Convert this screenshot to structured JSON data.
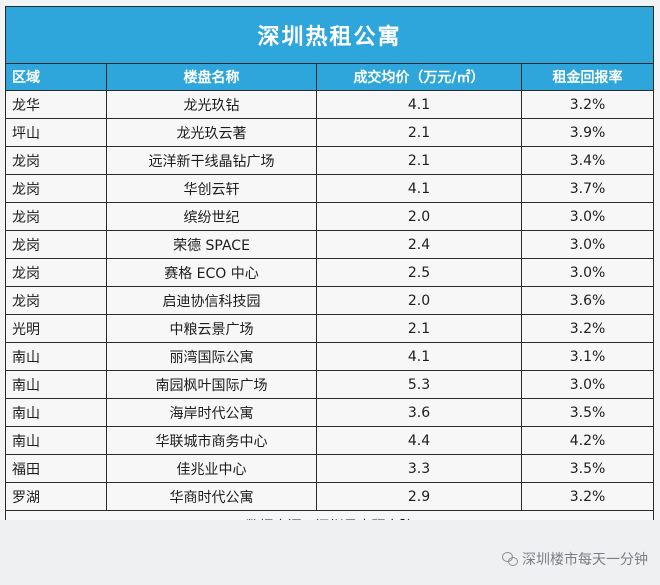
{
  "table": {
    "title": "深圳热租公寓",
    "headers": [
      "区域",
      "楼盘名称",
      "成交均价（万元/㎡）",
      "租金回报率"
    ],
    "rows": [
      [
        "龙华",
        "龙光玖钻",
        "4.1",
        "3.2%"
      ],
      [
        "坪山",
        "龙光玖云著",
        "2.1",
        "3.9%"
      ],
      [
        "龙岗",
        "远洋新干线晶钻广场",
        "2.1",
        "3.4%"
      ],
      [
        "龙岗",
        "华创云轩",
        "4.1",
        "3.7%"
      ],
      [
        "龙岗",
        "缤纷世纪",
        "2.0",
        "3.0%"
      ],
      [
        "龙岗",
        "荣德 SPACE",
        "2.4",
        "3.0%"
      ],
      [
        "龙岗",
        "赛格 ECO 中心",
        "2.5",
        "3.0%"
      ],
      [
        "龙岗",
        "启迪协信科技园",
        "2.0",
        "3.6%"
      ],
      [
        "光明",
        "中粮云景广场",
        "2.1",
        "3.2%"
      ],
      [
        "南山",
        "丽湾国际公寓",
        "4.1",
        "3.1%"
      ],
      [
        "南山",
        "南园枫叶国际广场",
        "5.3",
        "3.0%"
      ],
      [
        "南山",
        "海岸时代公寓",
        "3.6",
        "3.5%"
      ],
      [
        "南山",
        "华联城市商务中心",
        "4.4",
        "4.2%"
      ],
      [
        "福田",
        "佳兆业中心",
        "3.3",
        "3.5%"
      ],
      [
        "罗湖",
        "华商时代公寓",
        "2.9",
        "3.2%"
      ]
    ],
    "source": "数据来源：深圳贝壳研究院"
  },
  "watermark": {
    "text": "深圳楼市每天一分钟",
    "icon": "wechat-icon"
  },
  "colors": {
    "header_bg": "#2ea6dc",
    "header_text": "#ffffff",
    "border": "#2b2b2b"
  }
}
